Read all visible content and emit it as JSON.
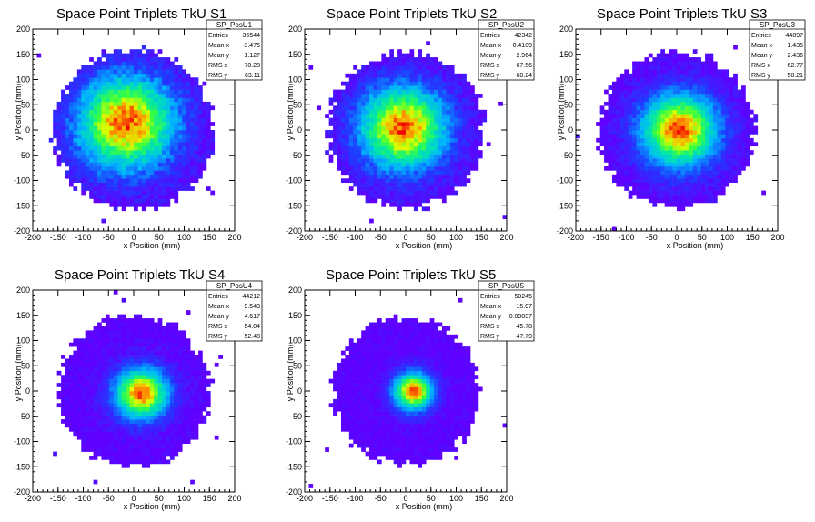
{
  "chart_data": [
    {
      "type": "heatmap",
      "title": "Space Point Triplets TkU S1",
      "xlabel": "x Position (mm)",
      "ylabel": "y Position (mm)",
      "xlim": [
        -200,
        200
      ],
      "ylim": [
        -200,
        200
      ],
      "xticks": [
        -200,
        -150,
        -100,
        -50,
        0,
        50,
        100,
        150,
        200
      ],
      "yticks": [
        -200,
        -150,
        -100,
        -50,
        0,
        50,
        100,
        150,
        200
      ],
      "stats": {
        "name": "SP_PosU1",
        "rows": [
          {
            "label": "Entries",
            "value": "36544"
          },
          {
            "label": "Mean x",
            "value": "-3.475"
          },
          {
            "label": "Mean y",
            "value": "1.127"
          },
          {
            "label": "RMS x",
            "value": "70.28"
          },
          {
            "label": "RMS y",
            "value": "63.11"
          }
        ]
      },
      "shape": {
        "radius": 160,
        "core_x": -15,
        "core_y": 15,
        "spread": 70,
        "noise": 0.45
      }
    },
    {
      "type": "heatmap",
      "title": "Space Point Triplets TkU S2",
      "xlabel": "x Position (mm)",
      "ylabel": "y Position (mm)",
      "xlim": [
        -200,
        200
      ],
      "ylim": [
        -200,
        200
      ],
      "xticks": [
        -200,
        -150,
        -100,
        -50,
        0,
        50,
        100,
        150,
        200
      ],
      "yticks": [
        -200,
        -150,
        -100,
        -50,
        0,
        50,
        100,
        150,
        200
      ],
      "stats": {
        "name": "SP_PosU2",
        "rows": [
          {
            "label": "Entries",
            "value": "42342"
          },
          {
            "label": "Mean x",
            "value": "-0.4109"
          },
          {
            "label": "Mean y",
            "value": "2.964"
          },
          {
            "label": "RMS x",
            "value": "67.56"
          },
          {
            "label": "RMS y",
            "value": "60.24"
          }
        ]
      },
      "shape": {
        "radius": 155,
        "core_x": -5,
        "core_y": 5,
        "spread": 62,
        "noise": 0.4
      }
    },
    {
      "type": "heatmap",
      "title": "Space Point Triplets TkU S3",
      "xlabel": "x Position (mm)",
      "ylabel": "y Position (mm)",
      "xlim": [
        -200,
        200
      ],
      "ylim": [
        -200,
        200
      ],
      "xticks": [
        -200,
        -150,
        -100,
        -50,
        0,
        50,
        100,
        150,
        200
      ],
      "yticks": [
        -200,
        -150,
        -100,
        -50,
        0,
        50,
        100,
        150,
        200
      ],
      "stats": {
        "name": "SP_PosU3",
        "rows": [
          {
            "label": "Entries",
            "value": "44897"
          },
          {
            "label": "Mean x",
            "value": "1.435"
          },
          {
            "label": "Mean y",
            "value": "2.436"
          },
          {
            "label": "RMS x",
            "value": "62.77"
          },
          {
            "label": "RMS y",
            "value": "58.21"
          }
        ]
      },
      "shape": {
        "radius": 155,
        "core_x": 5,
        "core_y": 0,
        "spread": 55,
        "noise": 0.35
      }
    },
    {
      "type": "heatmap",
      "title": "Space Point Triplets TkU S4",
      "xlabel": "x Position (mm)",
      "ylabel": "y Position (mm)",
      "xlim": [
        -200,
        200
      ],
      "ylim": [
        -200,
        200
      ],
      "xticks": [
        -200,
        -150,
        -100,
        -50,
        0,
        50,
        100,
        150,
        200
      ],
      "yticks": [
        -200,
        -150,
        -100,
        -50,
        0,
        50,
        100,
        150,
        200
      ],
      "stats": {
        "name": "SP_PosU4",
        "rows": [
          {
            "label": "Entries",
            "value": "44212"
          },
          {
            "label": "Mean x",
            "value": "9.543"
          },
          {
            "label": "Mean y",
            "value": "4.617"
          },
          {
            "label": "RMS x",
            "value": "54.04"
          },
          {
            "label": "RMS y",
            "value": "52.48"
          }
        ]
      },
      "shape": {
        "radius": 150,
        "core_x": 15,
        "core_y": -5,
        "spread": 38,
        "noise": 0.3
      }
    },
    {
      "type": "heatmap",
      "title": "Space Point Triplets TkU S5",
      "xlabel": "x Position (mm)",
      "ylabel": "y Position (mm)",
      "xlim": [
        -200,
        200
      ],
      "ylim": [
        -200,
        200
      ],
      "xticks": [
        -200,
        -150,
        -100,
        -50,
        0,
        50,
        100,
        150,
        200
      ],
      "yticks": [
        -200,
        -150,
        -100,
        -50,
        0,
        50,
        100,
        150,
        200
      ],
      "stats": {
        "name": "SP_PosU5",
        "rows": [
          {
            "label": "Entries",
            "value": "50245"
          },
          {
            "label": "Mean x",
            "value": "15.07"
          },
          {
            "label": "Mean y",
            "value": "0.09837"
          },
          {
            "label": "RMS x",
            "value": "45.78"
          },
          {
            "label": "RMS y",
            "value": "47.79"
          }
        ]
      },
      "shape": {
        "radius": 145,
        "core_x": 15,
        "core_y": 0,
        "spread": 28,
        "noise": 0.25
      }
    }
  ]
}
